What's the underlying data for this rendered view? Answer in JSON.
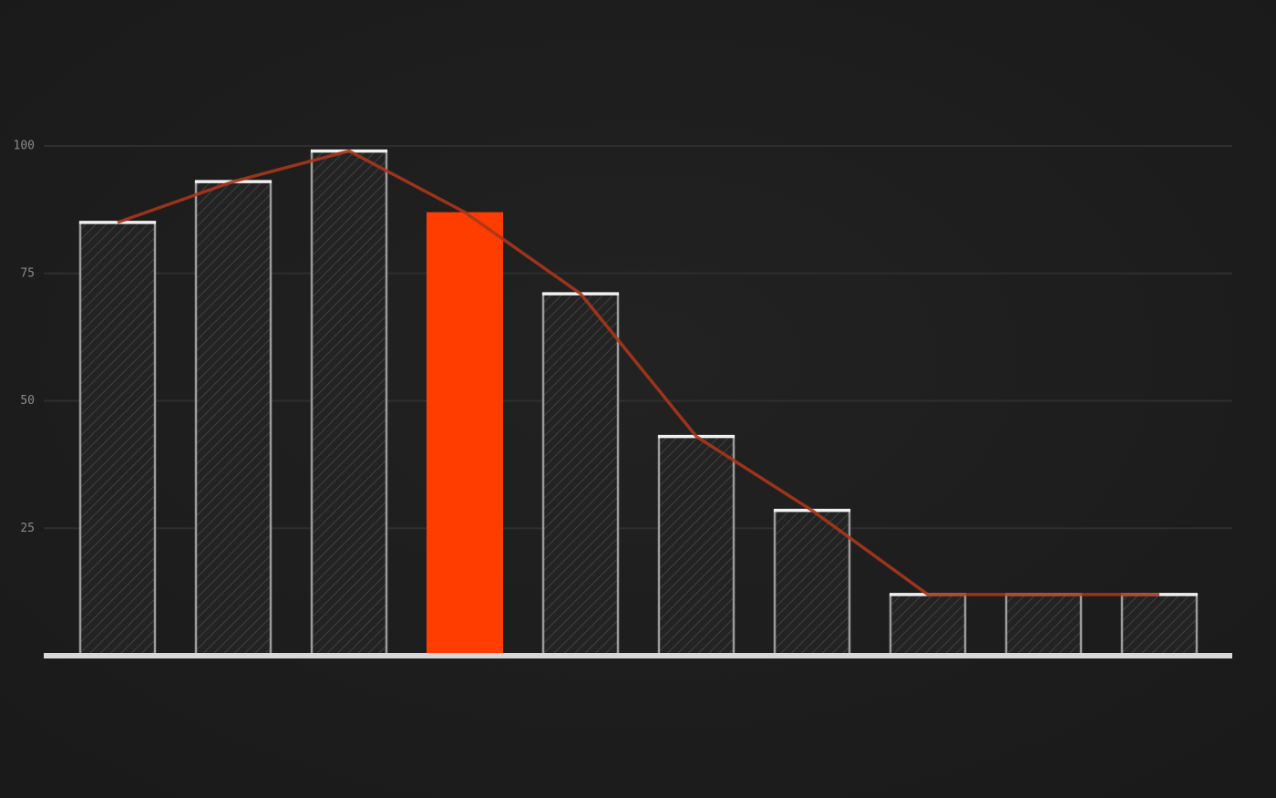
{
  "chart_data": {
    "type": "bar",
    "categories": [
      null,
      null,
      null,
      null,
      null,
      null,
      null,
      null,
      null,
      null
    ],
    "values": [
      85,
      93,
      99,
      87,
      71,
      43,
      28.5,
      12,
      12,
      12
    ],
    "color": "#9a9a9a",
    "highlight_index": 3,
    "highlight_color": "#ff3d00",
    "line_color": "#a8361a",
    "ylim": [
      0,
      100
    ],
    "yticks": [
      25,
      50,
      75,
      100
    ],
    "grid": true
  }
}
